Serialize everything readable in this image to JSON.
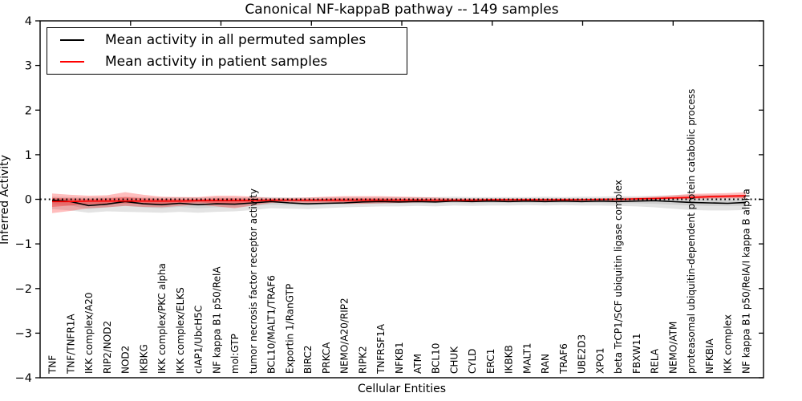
{
  "title": "Canonical NF-kappaB pathway -- 149 samples",
  "axes": {
    "xlabel": "Cellular Entities",
    "ylabel": "Inferred Activity"
  },
  "legend": {
    "position": "upper left",
    "items": [
      {
        "id": "permuted",
        "label": "Mean activity in all permuted samples",
        "color": "#000000"
      },
      {
        "id": "patient",
        "label": "Mean activity in patient samples",
        "color": "#ff0000"
      }
    ]
  },
  "chart_data": {
    "type": "line",
    "title": "Canonical NF-kappaB pathway -- 149 samples",
    "xlabel": "Cellular Entities",
    "ylabel": "Inferred Activity",
    "ylim": [
      -4,
      4
    ],
    "yticks": [
      -4,
      -3,
      -2,
      -1,
      0,
      1,
      2,
      3,
      4
    ],
    "yticklabels": [
      "−4",
      "−3",
      "−2",
      "−1",
      "0",
      "1",
      "2",
      "3",
      "4"
    ],
    "grid": false,
    "legend_position": "upper left",
    "categories": [
      "TNF",
      "TNF/TNFR1A",
      "IKK complex/A20",
      "RIP2/NOD2",
      "NOD2",
      "IKBKG",
      "IKK complex/PKC alpha",
      "IKK complex/ELKS",
      "cIAP1/UbcH5C",
      "NF kappa B1 p50/RelA",
      "mol:GTP",
      "tumor necrosis factor receptor activity",
      "BCL10/MALT1/TRAF6",
      "Exportin 1/RanGTP",
      "BIRC2",
      "PRKCA",
      "NEMO/A20/RIP2",
      "RIPK2",
      "TNFRSF1A",
      "NFKB1",
      "ATM",
      "BCL10",
      "CHUK",
      "CYLD",
      "ERC1",
      "IKBKB",
      "MALT1",
      "RAN",
      "TRAF6",
      "UBE2D3",
      "XPO1",
      "beta TrCP1/SCF ubiquitin ligase complex",
      "FBXW11",
      "RELA",
      "NEMO/ATM",
      "proteasomal ubiquitin-dependent protein catabolic process",
      "NFKBIA",
      "IKK complex",
      "NF kappa B1 p50/RelA/I kappa B alpha"
    ],
    "series": [
      {
        "id": "permuted",
        "name": "Mean activity in all permuted samples",
        "color": "#000000",
        "values": [
          -0.02,
          -0.05,
          -0.14,
          -0.11,
          -0.05,
          -0.1,
          -0.12,
          -0.09,
          -0.12,
          -0.1,
          -0.11,
          -0.08,
          -0.05,
          -0.08,
          -0.1,
          -0.09,
          -0.08,
          -0.06,
          -0.05,
          -0.06,
          -0.05,
          -0.06,
          -0.04,
          -0.05,
          -0.04,
          -0.05,
          -0.04,
          -0.05,
          -0.04,
          -0.05,
          -0.04,
          -0.05,
          -0.04,
          -0.03,
          -0.05,
          -0.07,
          -0.08,
          -0.09,
          -0.07
        ]
      },
      {
        "id": "patient",
        "name": "Mean activity in patient samples",
        "color": "#ff0000",
        "values": [
          -0.05,
          -0.05,
          -0.04,
          -0.04,
          -0.04,
          -0.04,
          -0.04,
          -0.04,
          -0.03,
          -0.03,
          -0.03,
          -0.03,
          -0.02,
          -0.02,
          -0.02,
          -0.02,
          -0.02,
          -0.02,
          -0.02,
          -0.02,
          -0.02,
          -0.02,
          -0.02,
          -0.02,
          -0.01,
          -0.01,
          -0.01,
          -0.01,
          -0.01,
          -0.01,
          0.0,
          0.0,
          0.01,
          0.02,
          0.03,
          0.04,
          0.06,
          0.07,
          0.08
        ]
      }
    ],
    "bands": [
      {
        "name": "permuted-range-outer",
        "color": "#999999",
        "opacity": 0.28,
        "upper": [
          0.06,
          0.05,
          0.04,
          0.05,
          0.06,
          0.05,
          0.04,
          0.05,
          0.04,
          0.05,
          0.04,
          0.05,
          0.05,
          0.04,
          0.04,
          0.04,
          0.05,
          0.05,
          0.05,
          0.05,
          0.05,
          0.05,
          0.06,
          0.05,
          0.05,
          0.05,
          0.05,
          0.06,
          0.05,
          0.06,
          0.06,
          0.07,
          0.07,
          0.08,
          0.09,
          0.1,
          0.1,
          0.1,
          0.1
        ],
        "lower": [
          -0.22,
          -0.25,
          -0.3,
          -0.27,
          -0.28,
          -0.29,
          -0.3,
          -0.28,
          -0.3,
          -0.28,
          -0.27,
          -0.24,
          -0.2,
          -0.21,
          -0.22,
          -0.2,
          -0.18,
          -0.17,
          -0.16,
          -0.16,
          -0.15,
          -0.16,
          -0.14,
          -0.15,
          -0.14,
          -0.14,
          -0.13,
          -0.14,
          -0.13,
          -0.14,
          -0.14,
          -0.15,
          -0.16,
          -0.18,
          -0.21,
          -0.24,
          -0.25,
          -0.25,
          -0.24
        ]
      },
      {
        "name": "permuted-range-inner",
        "color": "#999999",
        "opacity": 0.28,
        "upper": [
          0.02,
          0.0,
          -0.05,
          -0.03,
          0.0,
          -0.03,
          -0.04,
          -0.02,
          -0.04,
          -0.03,
          -0.04,
          -0.02,
          0.0,
          -0.02,
          -0.03,
          -0.03,
          -0.02,
          -0.01,
          0.0,
          -0.01,
          0.0,
          -0.01,
          0.0,
          0.0,
          0.0,
          0.0,
          0.0,
          0.0,
          0.0,
          0.0,
          0.0,
          0.0,
          0.01,
          0.01,
          0.0,
          0.0,
          0.0,
          -0.01,
          -0.01
        ],
        "lower": [
          -0.11,
          -0.14,
          -0.22,
          -0.18,
          -0.15,
          -0.18,
          -0.2,
          -0.17,
          -0.2,
          -0.18,
          -0.18,
          -0.15,
          -0.12,
          -0.13,
          -0.14,
          -0.12,
          -0.11,
          -0.1,
          -0.1,
          -0.09,
          -0.09,
          -0.09,
          -0.08,
          -0.09,
          -0.08,
          -0.08,
          -0.08,
          -0.08,
          -0.08,
          -0.08,
          -0.08,
          -0.09,
          -0.09,
          -0.1,
          -0.12,
          -0.14,
          -0.15,
          -0.15,
          -0.15
        ]
      },
      {
        "name": "patient-range-outer",
        "color": "#ff0000",
        "opacity": 0.26,
        "upper": [
          0.13,
          0.1,
          0.08,
          0.09,
          0.16,
          0.1,
          0.06,
          0.05,
          0.05,
          0.08,
          0.08,
          0.06,
          0.03,
          0.03,
          0.04,
          0.06,
          0.07,
          0.07,
          0.07,
          0.06,
          0.05,
          0.04,
          0.02,
          0.02,
          0.02,
          0.02,
          0.02,
          0.02,
          0.02,
          0.02,
          0.02,
          0.03,
          0.04,
          0.06,
          0.09,
          0.12,
          0.13,
          0.14,
          0.16
        ],
        "lower": [
          -0.31,
          -0.26,
          -0.2,
          -0.18,
          -0.15,
          -0.17,
          -0.18,
          -0.15,
          -0.12,
          -0.16,
          -0.2,
          -0.14,
          -0.08,
          -0.07,
          -0.08,
          -0.09,
          -0.1,
          -0.1,
          -0.09,
          -0.08,
          -0.07,
          -0.06,
          -0.05,
          -0.04,
          -0.04,
          -0.04,
          -0.04,
          -0.04,
          -0.04,
          -0.03,
          -0.03,
          -0.03,
          -0.02,
          -0.01,
          0.0,
          0.0,
          0.01,
          0.02,
          0.02
        ]
      },
      {
        "name": "patient-range-inner",
        "color": "#ff0000",
        "opacity": 0.3,
        "upper": [
          0.03,
          0.02,
          0.01,
          0.02,
          0.05,
          0.02,
          0.01,
          0.0,
          0.0,
          0.02,
          0.02,
          0.01,
          0.0,
          0.0,
          0.0,
          0.01,
          0.02,
          0.02,
          0.02,
          0.01,
          0.01,
          0.0,
          0.0,
          0.0,
          0.0,
          0.0,
          0.0,
          0.0,
          0.0,
          0.0,
          0.01,
          0.01,
          0.02,
          0.03,
          0.05,
          0.07,
          0.08,
          0.09,
          0.1
        ],
        "lower": [
          -0.17,
          -0.14,
          -0.11,
          -0.1,
          -0.09,
          -0.1,
          -0.1,
          -0.09,
          -0.07,
          -0.09,
          -0.11,
          -0.08,
          -0.05,
          -0.04,
          -0.05,
          -0.05,
          -0.06,
          -0.06,
          -0.05,
          -0.05,
          -0.04,
          -0.04,
          -0.03,
          -0.03,
          -0.03,
          -0.03,
          -0.03,
          -0.03,
          -0.03,
          -0.02,
          -0.02,
          -0.02,
          -0.01,
          0.0,
          0.01,
          0.02,
          0.03,
          0.04,
          0.04
        ]
      }
    ],
    "zero_line": {
      "value": 0,
      "style": "dotted",
      "color": "#000000"
    }
  },
  "colors": {
    "frame": "#000000",
    "background": "#ffffff",
    "permuted_series": "#000000",
    "patient_series": "#ff0000"
  }
}
